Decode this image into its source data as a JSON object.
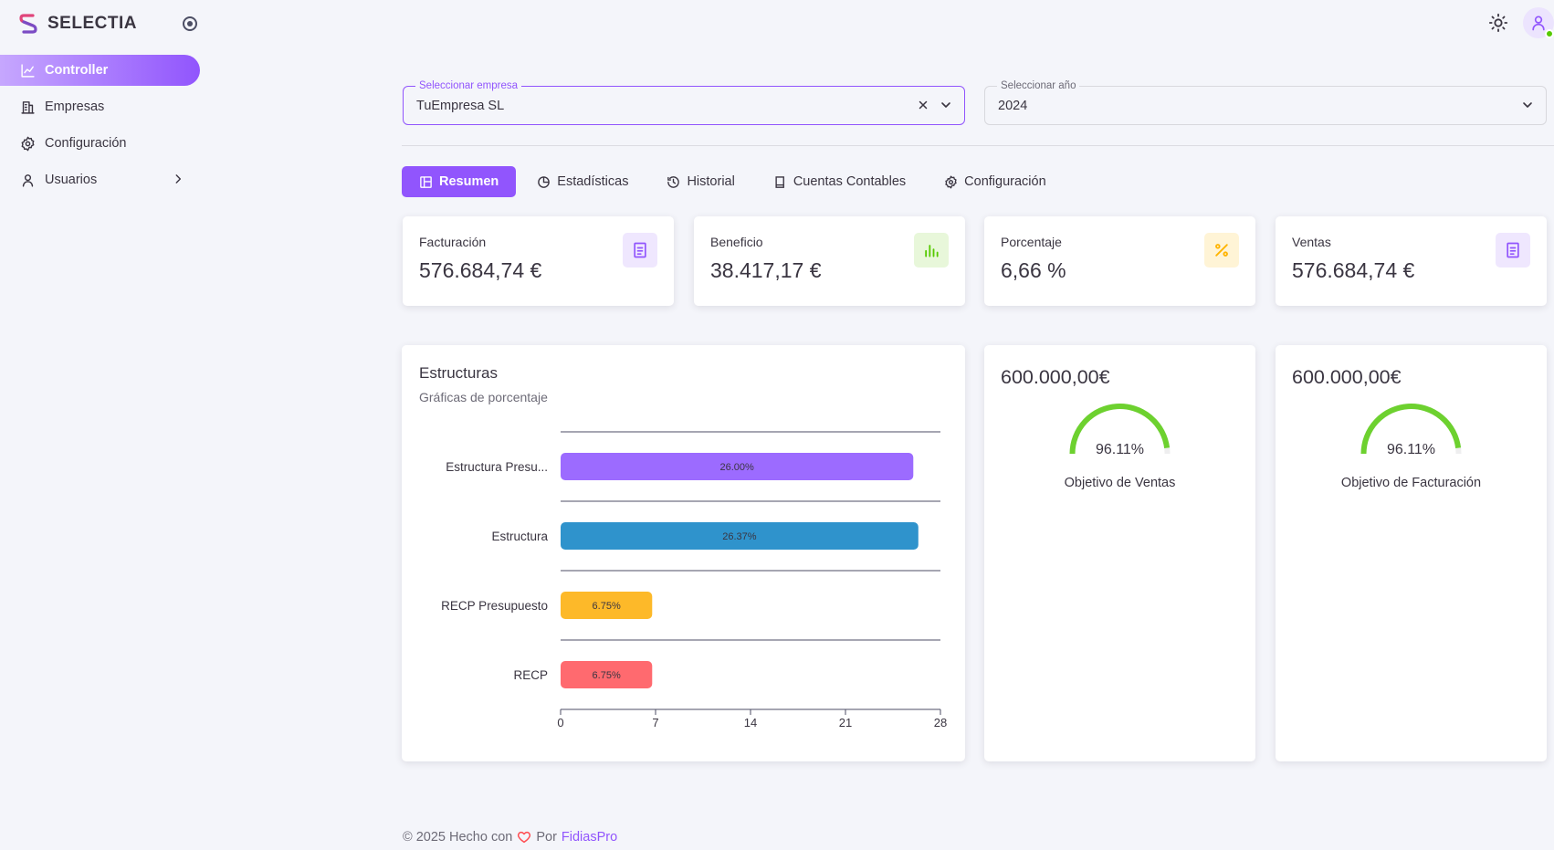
{
  "app": {
    "name": "SELECTIA"
  },
  "sidebar": {
    "items": [
      {
        "label": "Controller",
        "icon": "chart-line-icon",
        "active": true
      },
      {
        "label": "Empresas",
        "icon": "building-icon"
      },
      {
        "label": "Configuración",
        "icon": "gear-icon"
      },
      {
        "label": "Usuarios",
        "icon": "user-icon",
        "has_submenu": true
      }
    ]
  },
  "filters": {
    "company": {
      "legend": "Seleccionar empresa",
      "value": "TuEmpresa SL"
    },
    "year": {
      "legend": "Seleccionar año",
      "value": "2024"
    }
  },
  "tabs": [
    {
      "label": "Resumen",
      "icon": "layout-icon",
      "active": true
    },
    {
      "label": "Estadísticas",
      "icon": "pie-chart-icon"
    },
    {
      "label": "Historial",
      "icon": "history-icon"
    },
    {
      "label": "Cuentas Contables",
      "icon": "book-icon"
    },
    {
      "label": "Configuración",
      "icon": "gear-icon"
    }
  ],
  "kpis": [
    {
      "label": "Facturación",
      "value": "576.684,74 €",
      "icon": "document-icon",
      "color": "#9155fd",
      "bg": "#efe7fe"
    },
    {
      "label": "Beneficio",
      "value": "38.417,17 €",
      "icon": "bar-chart-icon",
      "color": "#56ca00",
      "bg": "#e8f7da"
    },
    {
      "label": "Porcentaje",
      "value": "6,66 %",
      "icon": "percent-icon",
      "color": "#ffb400",
      "bg": "#fff4d6"
    },
    {
      "label": "Ventas",
      "value": "576.684,74 €",
      "icon": "document-icon",
      "color": "#9155fd",
      "bg": "#efe7fe"
    }
  ],
  "structures": {
    "title": "Estructuras",
    "subtitle": "Gráficas de porcentaje"
  },
  "chart_data": {
    "type": "bar",
    "orientation": "horizontal",
    "title": "Estructuras",
    "subtitle": "Gráficas de porcentaje",
    "categories": [
      "Estructura Presu...",
      "Estructura",
      "RECP Presupuesto",
      "RECP"
    ],
    "values": [
      26.0,
      26.37,
      6.75,
      6.75
    ],
    "data_labels": [
      "26.00%",
      "26.37%",
      "6.75%",
      "6.75%"
    ],
    "colors": [
      "#9c6bff",
      "#2f93cc",
      "#fdb929",
      "#ff6a6f"
    ],
    "xlim": [
      0,
      28
    ],
    "xticks": [
      "0",
      "7",
      "14",
      "21",
      "28"
    ],
    "grid": "horizontal lines between categories"
  },
  "gauges": [
    {
      "amount": "600.000,00€",
      "percent": 96.11,
      "percent_label": "96.11%",
      "label": "Objetivo de Ventas",
      "color": "#6dd12f"
    },
    {
      "amount": "600.000,00€",
      "percent": 96.11,
      "percent_label": "96.11%",
      "label": "Objetivo de Facturación",
      "color": "#6dd12f"
    }
  ],
  "footer": {
    "copyright": "© 2025 Hecho con",
    "by": "Por",
    "link": "FidiasPro"
  }
}
